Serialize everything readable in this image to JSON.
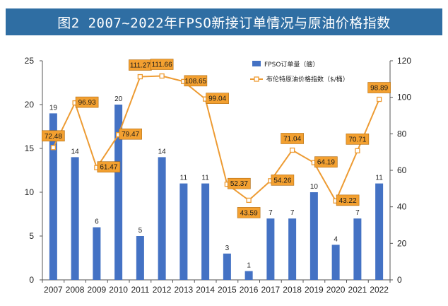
{
  "title": "图2 2007~2022年FPSO新接订单情况与原油价格指数",
  "colors": {
    "title_bg": "#2f6ea3",
    "bar": "#4472c4",
    "line": "#ed9b33",
    "label_box": "#f3a030"
  },
  "chart_data": {
    "type": "bar",
    "categories": [
      "2007",
      "2008",
      "2009",
      "2010",
      "2011",
      "2012",
      "2013",
      "2014",
      "2015",
      "2016",
      "2017",
      "2018",
      "2019",
      "2020",
      "2021",
      "2022"
    ],
    "series": [
      {
        "name": "FPSO订单量（艘）",
        "type": "bar",
        "axis": "left",
        "values": [
          19,
          14,
          6,
          20,
          5,
          14,
          11,
          11,
          3,
          1,
          7,
          7,
          10,
          4,
          7,
          11
        ]
      },
      {
        "name": "布伦特原油价格指数（$/桶）",
        "type": "line",
        "axis": "right",
        "values": [
          72.48,
          96.93,
          61.47,
          79.47,
          111.27,
          111.66,
          108.65,
          99.04,
          52.37,
          43.59,
          54.26,
          71.04,
          64.19,
          43.22,
          70.71,
          98.89
        ]
      }
    ],
    "yleft_ticks": [
      "0",
      "5",
      "10",
      "15",
      "20",
      "25"
    ],
    "yright_ticks": [
      "0",
      "20",
      "40",
      "60",
      "80",
      "100",
      "120"
    ],
    "ylim_left": [
      0,
      25
    ],
    "ylim_right": [
      0,
      120
    ],
    "legend_position": "top-right",
    "grid": false
  }
}
